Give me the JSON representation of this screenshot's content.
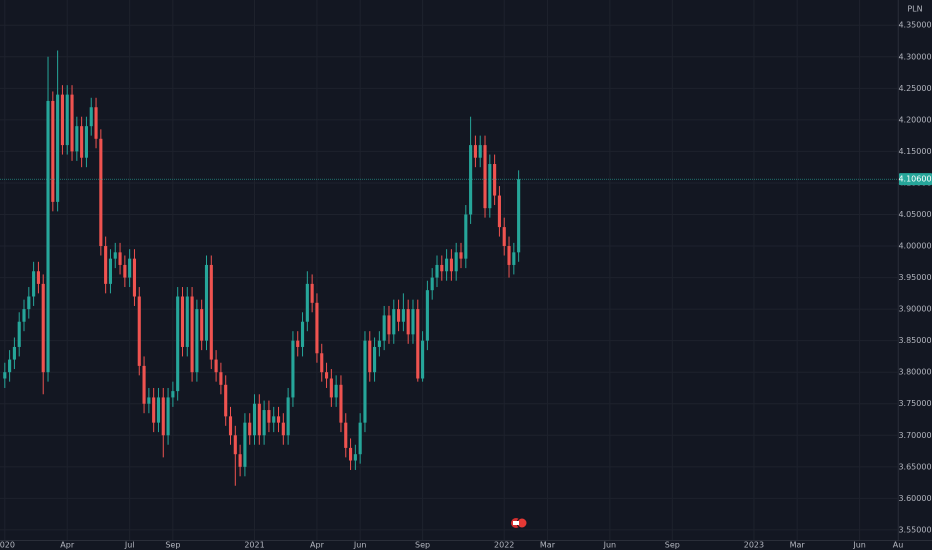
{
  "chart_data": {
    "type": "candlestick",
    "currency": "PLN",
    "up_color": "#26a69a",
    "down_color": "#ef5350",
    "grid": true,
    "x": [
      0,
      1,
      2,
      3,
      4,
      5,
      6,
      7,
      8,
      9,
      10,
      11,
      12,
      13,
      14,
      15,
      16,
      17,
      18,
      19,
      20,
      21,
      22,
      23,
      24,
      25,
      26,
      27,
      28,
      29,
      30,
      31,
      32,
      33,
      34,
      35,
      36,
      37,
      38,
      39,
      40,
      41,
      42,
      43,
      44,
      45,
      46,
      47,
      48,
      49,
      50,
      51,
      52,
      53,
      54,
      55,
      56,
      57,
      58,
      59,
      60,
      61,
      62,
      63,
      64,
      65,
      66,
      67,
      68,
      69,
      70,
      71,
      72,
      73,
      74,
      75,
      76,
      77,
      78,
      79,
      80,
      81,
      82,
      83,
      84,
      85,
      86,
      87,
      88,
      89,
      90,
      91,
      92,
      93,
      94,
      95,
      96,
      97,
      98,
      99,
      100,
      101,
      102,
      103,
      104,
      105,
      106,
      107
    ],
    "open": [
      3.79,
      3.8,
      3.82,
      3.84,
      3.88,
      3.9,
      3.92,
      3.96,
      3.94,
      3.8,
      4.23,
      4.07,
      4.24,
      4.16,
      4.24,
      4.15,
      4.19,
      4.14,
      4.19,
      4.22,
      4.17,
      4.0,
      3.94,
      3.98,
      3.99,
      3.97,
      3.95,
      3.98,
      3.92,
      3.81,
      3.75,
      3.76,
      3.72,
      3.76,
      3.7,
      3.76,
      3.77,
      3.92,
      3.84,
      3.92,
      3.8,
      3.9,
      3.85,
      3.97,
      3.82,
      3.8,
      3.78,
      3.73,
      3.7,
      3.67,
      3.65,
      3.72,
      3.7,
      3.75,
      3.7,
      3.74,
      3.72,
      3.73,
      3.72,
      3.7,
      3.76,
      3.85,
      3.84,
      3.88,
      3.94,
      3.91,
      3.83,
      3.8,
      3.79,
      3.76,
      3.78,
      3.72,
      3.68,
      3.66,
      3.67,
      3.72,
      3.85,
      3.8,
      3.84,
      3.85,
      3.89,
      3.86,
      3.9,
      3.88,
      3.9,
      3.86,
      3.9,
      3.79,
      3.85,
      3.93,
      3.95,
      3.97,
      3.96,
      3.98,
      3.96,
      3.99,
      3.98,
      4.05,
      4.16,
      4.14,
      4.16,
      4.06,
      4.13,
      4.08,
      4.03,
      4.0,
      3.97,
      3.99
    ],
    "high": [
      3.815,
      3.835,
      3.855,
      3.895,
      3.915,
      3.935,
      3.975,
      3.975,
      3.955,
      4.3,
      4.245,
      4.31,
      4.255,
      4.255,
      4.255,
      4.205,
      4.205,
      4.205,
      4.235,
      4.235,
      4.185,
      4.015,
      3.995,
      4.005,
      4.005,
      3.985,
      3.995,
      3.995,
      3.935,
      3.825,
      3.775,
      3.775,
      3.775,
      3.775,
      3.775,
      3.785,
      3.935,
      3.935,
      3.935,
      3.935,
      3.915,
      3.915,
      3.985,
      3.985,
      3.835,
      3.815,
      3.795,
      3.745,
      3.715,
      3.685,
      3.735,
      3.735,
      3.765,
      3.765,
      3.755,
      3.755,
      3.745,
      3.745,
      3.735,
      3.775,
      3.865,
      3.865,
      3.895,
      3.96,
      3.955,
      3.925,
      3.845,
      3.815,
      3.805,
      3.795,
      3.795,
      3.735,
      3.695,
      3.685,
      3.735,
      3.865,
      3.865,
      3.855,
      3.865,
      3.905,
      3.905,
      3.915,
      3.915,
      3.925,
      3.915,
      3.915,
      3.915,
      3.865,
      3.945,
      3.965,
      3.985,
      3.985,
      3.995,
      3.995,
      4.005,
      4.005,
      4.065,
      4.205,
      4.175,
      4.175,
      4.175,
      4.145,
      4.145,
      4.095,
      4.045,
      4.015,
      4.005,
      4.12
    ],
    "low": [
      3.775,
      3.785,
      3.805,
      3.825,
      3.865,
      3.885,
      3.905,
      3.925,
      3.765,
      3.785,
      4.055,
      4.055,
      4.145,
      4.145,
      4.135,
      4.135,
      4.125,
      4.125,
      4.175,
      4.155,
      3.985,
      3.925,
      3.925,
      3.965,
      3.955,
      3.935,
      3.935,
      3.905,
      3.795,
      3.735,
      3.735,
      3.705,
      3.705,
      3.665,
      3.685,
      3.745,
      3.755,
      3.825,
      3.825,
      3.785,
      3.785,
      3.835,
      3.835,
      3.805,
      3.785,
      3.765,
      3.715,
      3.685,
      3.62,
      3.635,
      3.635,
      3.685,
      3.685,
      3.685,
      3.685,
      3.705,
      3.705,
      3.705,
      3.685,
      3.685,
      3.745,
      3.825,
      3.825,
      3.865,
      3.895,
      3.815,
      3.785,
      3.775,
      3.745,
      3.745,
      3.705,
      3.665,
      3.645,
      3.645,
      3.655,
      3.705,
      3.785,
      3.785,
      3.825,
      3.835,
      3.845,
      3.845,
      3.865,
      3.865,
      3.845,
      3.845,
      3.785,
      3.785,
      3.835,
      3.915,
      3.935,
      3.945,
      3.945,
      3.945,
      3.945,
      3.965,
      3.965,
      4.035,
      4.125,
      4.125,
      4.045,
      4.045,
      4.065,
      4.015,
      3.985,
      3.95,
      3.955,
      3.975
    ],
    "close": [
      3.8,
      3.82,
      3.84,
      3.88,
      3.9,
      3.92,
      3.96,
      3.94,
      3.8,
      4.23,
      4.07,
      4.24,
      4.16,
      4.24,
      4.15,
      4.19,
      4.14,
      4.19,
      4.22,
      4.17,
      4.0,
      3.94,
      3.98,
      3.99,
      3.97,
      3.95,
      3.98,
      3.92,
      3.81,
      3.75,
      3.76,
      3.72,
      3.76,
      3.7,
      3.76,
      3.77,
      3.92,
      3.84,
      3.92,
      3.8,
      3.9,
      3.85,
      3.97,
      3.82,
      3.8,
      3.78,
      3.73,
      3.7,
      3.67,
      3.65,
      3.72,
      3.7,
      3.75,
      3.7,
      3.74,
      3.72,
      3.73,
      3.72,
      3.7,
      3.76,
      3.85,
      3.84,
      3.88,
      3.94,
      3.91,
      3.83,
      3.8,
      3.79,
      3.76,
      3.78,
      3.72,
      3.68,
      3.66,
      3.67,
      3.72,
      3.85,
      3.8,
      3.84,
      3.85,
      3.89,
      3.86,
      3.9,
      3.88,
      3.9,
      3.86,
      3.9,
      3.79,
      3.85,
      3.93,
      3.95,
      3.97,
      3.96,
      3.98,
      3.96,
      3.99,
      3.98,
      4.05,
      4.16,
      4.14,
      4.16,
      4.06,
      4.13,
      4.08,
      4.03,
      4.0,
      3.97,
      3.99,
      4.106
    ],
    "xlim": [
      -1,
      186
    ],
    "xticks": [
      {
        "value": 0,
        "label": "2020"
      },
      {
        "value": 13,
        "label": "Apr"
      },
      {
        "value": 26,
        "label": "Jul"
      },
      {
        "value": 35,
        "label": "Sep"
      },
      {
        "value": 52,
        "label": "2021"
      },
      {
        "value": 65,
        "label": "Apr"
      },
      {
        "value": 74,
        "label": "Jun"
      },
      {
        "value": 87,
        "label": "Sep"
      },
      {
        "value": 104,
        "label": "2022"
      },
      {
        "value": 113,
        "label": "Mar"
      },
      {
        "value": 126,
        "label": "Jun"
      },
      {
        "value": 139,
        "label": "Sep"
      },
      {
        "value": 156,
        "label": "2023"
      },
      {
        "value": 165,
        "label": "Mar"
      },
      {
        "value": 178,
        "label": "Jun"
      },
      {
        "value": 186,
        "label": "Au"
      }
    ],
    "ylim": [
      3.534,
      4.39
    ],
    "yticks": [
      {
        "value": 3.55,
        "label": "3.55000"
      },
      {
        "value": 3.6,
        "label": "3.60000"
      },
      {
        "value": 3.65,
        "label": "3.65000"
      },
      {
        "value": 3.7,
        "label": "3.70000"
      },
      {
        "value": 3.75,
        "label": "3.75000"
      },
      {
        "value": 3.8,
        "label": "3.80000"
      },
      {
        "value": 3.85,
        "label": "3.85000"
      },
      {
        "value": 3.9,
        "label": "3.90000"
      },
      {
        "value": 3.95,
        "label": "3.95000"
      },
      {
        "value": 4.0,
        "label": "4.00000"
      },
      {
        "value": 4.05,
        "label": "4.05000"
      },
      {
        "value": 4.1,
        "label": "4.10000"
      },
      {
        "value": 4.15,
        "label": "4.15000"
      },
      {
        "value": 4.2,
        "label": "4.20000"
      },
      {
        "value": 4.25,
        "label": "4.25000"
      },
      {
        "value": 4.3,
        "label": "4.30000"
      },
      {
        "value": 4.35,
        "label": "4.35000"
      }
    ],
    "price_line": {
      "value": 4.106,
      "label": "4.10600"
    }
  }
}
